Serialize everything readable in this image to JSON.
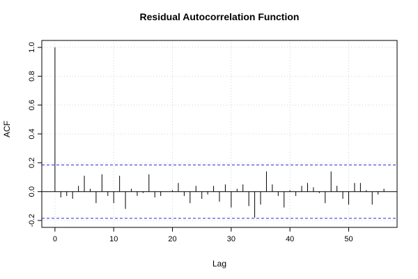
{
  "chart_data": {
    "type": "bar",
    "title": "Residual Autocorrelation Function",
    "xlabel": "Lag",
    "ylabel": "ACF",
    "xlim": [
      0,
      56
    ],
    "ylim": [
      -0.2,
      1.0
    ],
    "x_ticks": [
      0,
      10,
      20,
      30,
      40,
      50
    ],
    "y_ticks": [
      -0.2,
      0.0,
      0.2,
      0.4,
      0.6,
      0.8,
      1.0
    ],
    "y_tick_labels": [
      "-0.2",
      "0.0",
      "0.2",
      "0.4",
      "0.6",
      "0.8",
      "1.0"
    ],
    "confidence_bound": 0.185,
    "grid": true,
    "series": [
      {
        "x": [
          0,
          1,
          2,
          3,
          4,
          5,
          6,
          7,
          8,
          9,
          10,
          11,
          12,
          13,
          14,
          15,
          16,
          17,
          18,
          19,
          20,
          21,
          22,
          23,
          24,
          25,
          26,
          27,
          28,
          29,
          30,
          31,
          32,
          33,
          34,
          35,
          36,
          37,
          38,
          39,
          40,
          41,
          42,
          43,
          44,
          45,
          46,
          47,
          48,
          49,
          50,
          51,
          52,
          53,
          54,
          55,
          56
        ],
        "values": [
          1.0,
          -0.04,
          -0.03,
          -0.05,
          0.04,
          0.11,
          0.02,
          -0.08,
          0.12,
          -0.03,
          -0.08,
          0.11,
          -0.12,
          0.02,
          -0.03,
          -0.01,
          0.12,
          -0.04,
          -0.03,
          0.0,
          0.01,
          0.06,
          -0.03,
          -0.08,
          0.04,
          -0.05,
          -0.02,
          0.04,
          -0.07,
          0.05,
          -0.11,
          0.02,
          0.05,
          -0.1,
          -0.18,
          -0.09,
          0.14,
          0.05,
          -0.03,
          -0.11,
          0.01,
          -0.03,
          0.04,
          0.06,
          0.03,
          -0.01,
          -0.08,
          0.14,
          0.04,
          -0.05,
          -0.09,
          0.06,
          0.06,
          0.01,
          -0.09,
          -0.02,
          0.02
        ]
      }
    ]
  }
}
